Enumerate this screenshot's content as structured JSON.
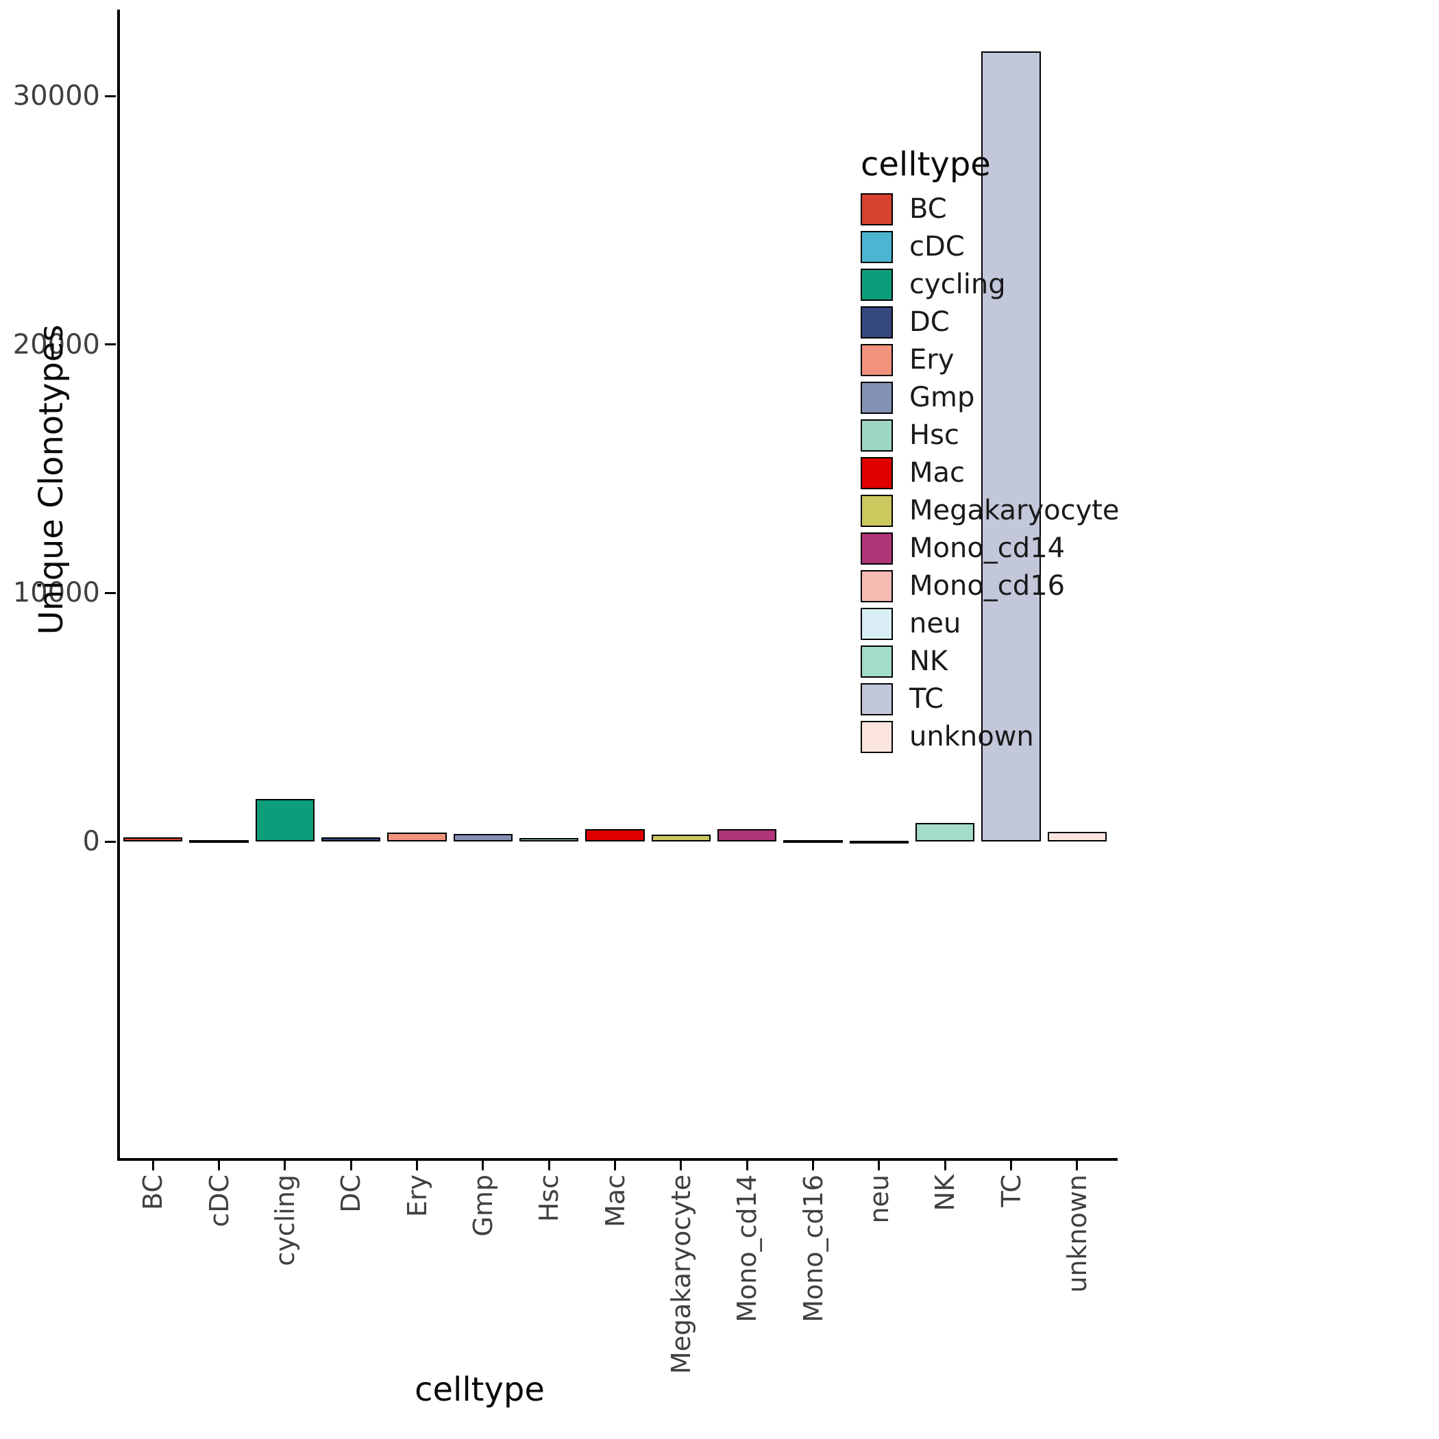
{
  "chart_data": {
    "type": "bar",
    "title": "",
    "xlabel": "celltype",
    "ylabel": "Unique Clonotypes",
    "legend_title": "celltype",
    "legend_position": "right",
    "grid": false,
    "ylim": [
      0,
      32000
    ],
    "yticks": [
      0,
      10000,
      20000,
      30000
    ],
    "ytick_labels": [
      "0",
      "10000",
      "20000",
      "30000"
    ],
    "categories": [
      "BC",
      "cDC",
      "cycling",
      "DC",
      "Ery",
      "Gmp",
      "Hsc",
      "Mac",
      "Megakaryocyte",
      "Mono_cd14",
      "Mono_cd16",
      "neu",
      "NK",
      "TC",
      "unknown"
    ],
    "values": [
      180,
      50,
      1700,
      180,
      350,
      300,
      130,
      500,
      280,
      500,
      60,
      25,
      750,
      31800,
      400
    ],
    "colors": {
      "BC": "#D7432E",
      "cDC": "#4CB5D2",
      "cycling": "#0E9D7B",
      "DC": "#35497E",
      "Ery": "#F1937C",
      "Gmp": "#8491B4",
      "Hsc": "#9DD6C5",
      "Mac": "#E00000",
      "Megakaryocyte": "#CBC85E",
      "Mono_cd14": "#B03478",
      "Mono_cd16": "#F5BBB3",
      "neu": "#D9EEF4",
      "NK": "#A3DCCA",
      "TC": "#C2C8DA",
      "unknown": "#FBE5DE"
    },
    "bar_stroke": "#000000",
    "axis_color": "#000000",
    "tick_text_color": "#404040",
    "title_text_color": "#0a0a0a"
  }
}
